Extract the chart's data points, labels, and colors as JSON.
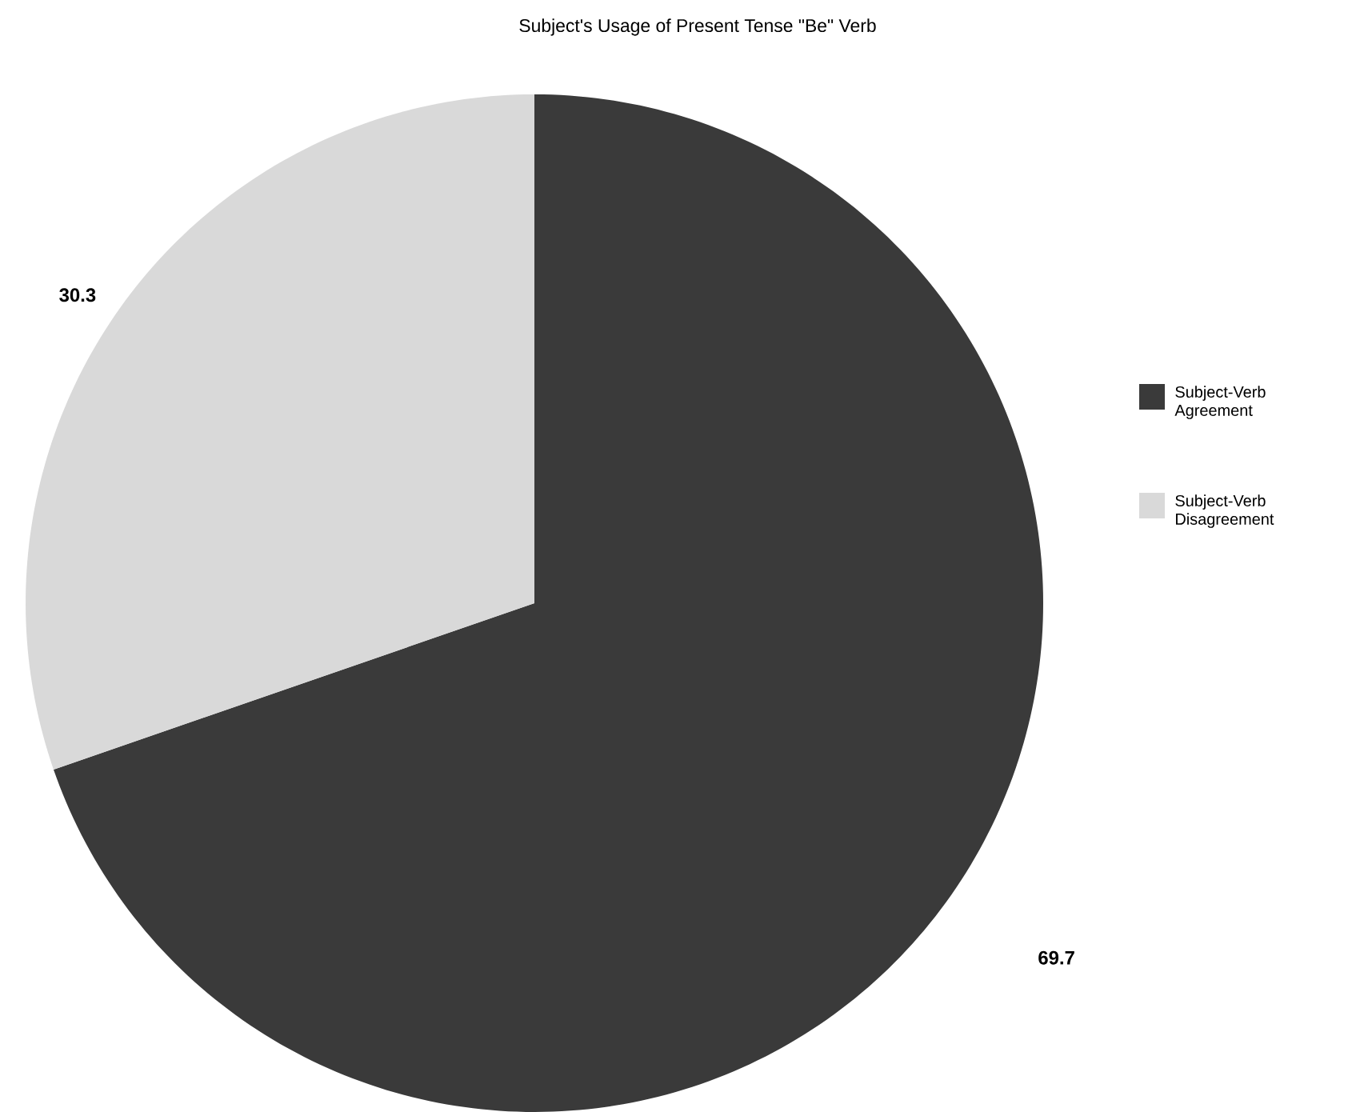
{
  "chart_data": {
    "type": "pie",
    "title": "Subject's Usage of Present Tense \"Be\" Verb",
    "categories": [
      "Subject-Verb Agreement",
      "Subject-Verb Disagreement"
    ],
    "values": [
      69.7,
      30.3
    ],
    "colors": [
      "#3a3a3a",
      "#d9d9d9"
    ],
    "data_labels": true,
    "legend": "right"
  }
}
